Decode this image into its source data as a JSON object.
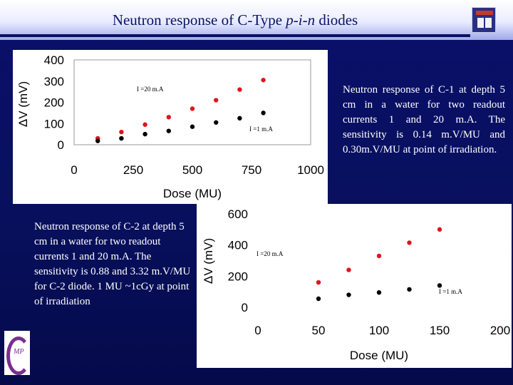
{
  "title": {
    "prefix": "Neutron response of C-Type ",
    "italic": "p-i-n",
    "suffix": " diodes"
  },
  "text_top_right": "Neutron response of C-1 at depth 5 cm in a water for two readout currents 1 and 20 m.A. The sensitivity is 0.14 m.V/MU and 0.30m.V/MU at point of irradiation.",
  "text_bottom_left": "Neutron response of C-2 at depth 5 cm in a water for two readout currents 1 and 20 m.A. The sensitivity is 0.88 and 3.32 m.V/MU for C-2 diode. 1 MU ~1cGy at point of irradiation",
  "colors": {
    "background": "#08105e",
    "series_20mA": "#e0141c",
    "series_1mA": "#000000",
    "text": "#ffffff"
  },
  "icons": [
    "university-crest-icon",
    "institute-logo-icon"
  ],
  "chart_data": [
    {
      "type": "scatter",
      "xlabel": "Dose  (MU)",
      "ylabel": "ΔV (mV)",
      "xlim": [
        0,
        1000
      ],
      "ylim": [
        0,
        400
      ],
      "xticks": [
        "0",
        "250",
        "500",
        "750",
        "1000"
      ],
      "yticks": [
        "0",
        "100",
        "200",
        "300",
        "400"
      ],
      "grid": false,
      "series": [
        {
          "name": "I =20 m.A",
          "color": "#e0141c",
          "x": [
            100,
            200,
            300,
            400,
            500,
            600,
            700,
            800
          ],
          "y": [
            30,
            60,
            95,
            130,
            170,
            210,
            260,
            305
          ]
        },
        {
          "name": "I =1 m.A",
          "color": "#000000",
          "x": [
            100,
            200,
            300,
            400,
            500,
            600,
            700,
            800
          ],
          "y": [
            18,
            30,
            50,
            65,
            85,
            105,
            125,
            150
          ]
        }
      ]
    },
    {
      "type": "scatter",
      "xlabel": "Dose  (MU)",
      "ylabel": "ΔV (mV)",
      "xlim": [
        0,
        200
      ],
      "ylim": [
        0,
        600
      ],
      "xticks": [
        "0",
        "50",
        "100",
        "150",
        "200"
      ],
      "yticks": [
        "0",
        "200",
        "400",
        "600"
      ],
      "grid": false,
      "series": [
        {
          "name": "I =20 m.A",
          "color": "#e0141c",
          "x": [
            50,
            75,
            100,
            125,
            150
          ],
          "y": [
            160,
            240,
            330,
            415,
            500
          ]
        },
        {
          "name": "I =1 m.A",
          "color": "#000000",
          "x": [
            50,
            75,
            100,
            125,
            150
          ],
          "y": [
            55,
            80,
            95,
            115,
            140
          ]
        }
      ]
    }
  ]
}
